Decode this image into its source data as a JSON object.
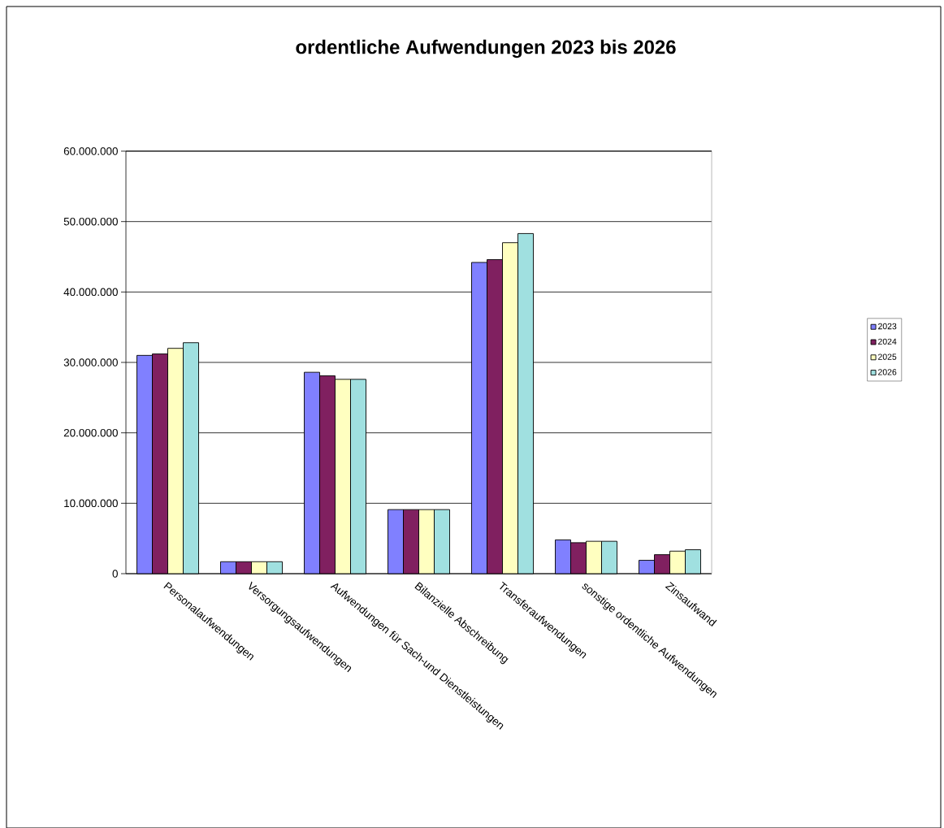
{
  "chart_data": {
    "type": "bar",
    "title": "ordentliche Aufwendungen 2023 bis 2026",
    "categories": [
      "Personalaufwendungen",
      "Versorgungsaufwendungen",
      "Aufwendungen für Sach-und Dienstleistungen",
      "Bilanzielle Abschreibung",
      "Transferaufwendungen",
      "sonstige ordentliche Aufwendungen",
      "Zinsaufwand"
    ],
    "series": [
      {
        "name": "2023",
        "color": "#8080ff",
        "values": [
          31000000,
          1700000,
          28600000,
          9100000,
          44200000,
          4800000,
          1900000
        ]
      },
      {
        "name": "2024",
        "color": "#802060",
        "values": [
          31200000,
          1700000,
          28100000,
          9100000,
          44600000,
          4400000,
          2700000
        ]
      },
      {
        "name": "2025",
        "color": "#ffffc0",
        "values": [
          32000000,
          1700000,
          27600000,
          9100000,
          47000000,
          4600000,
          3200000
        ]
      },
      {
        "name": "2026",
        "color": "#a0e0e0",
        "values": [
          32800000,
          1700000,
          27600000,
          9100000,
          48300000,
          4600000,
          3400000
        ]
      }
    ],
    "ylim": [
      0,
      60000000
    ],
    "yticks": [
      {
        "value": 0,
        "label": "0"
      },
      {
        "value": 10000000,
        "label": "10.000.000"
      },
      {
        "value": 20000000,
        "label": "20.000.000"
      },
      {
        "value": 30000000,
        "label": "30.000.000"
      },
      {
        "value": 40000000,
        "label": "40.000.000"
      },
      {
        "value": 50000000,
        "label": "50.000.000"
      },
      {
        "value": 60000000,
        "label": "60.000.000"
      }
    ],
    "grid": "y",
    "legend": "right"
  }
}
